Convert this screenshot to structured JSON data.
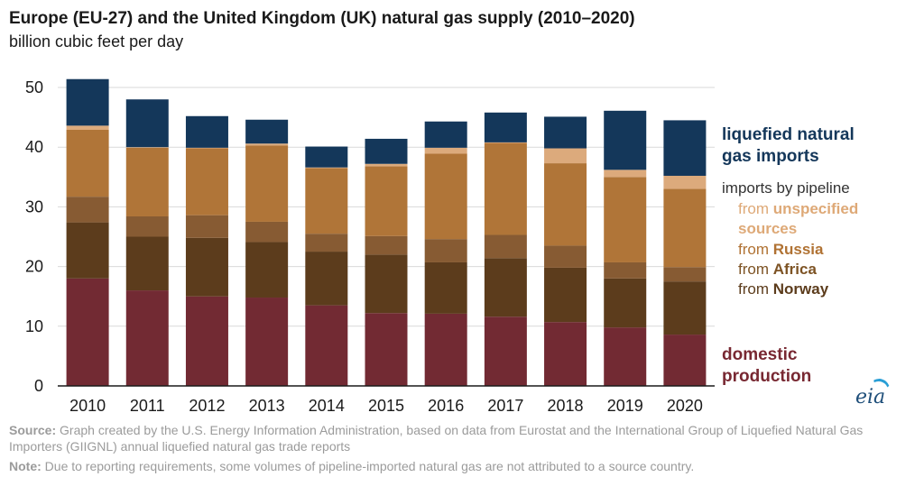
{
  "chart_data": {
    "type": "bar",
    "stacked": true,
    "title": "Europe (EU-27) and the United Kingdom (UK) natural gas supply (2010–2020)",
    "subtitle": "billion cubic feet per day",
    "categories": [
      "2010",
      "2011",
      "2012",
      "2013",
      "2014",
      "2015",
      "2016",
      "2017",
      "2018",
      "2019",
      "2020"
    ],
    "ylim": [
      0,
      50
    ],
    "yticks": [
      0,
      10,
      20,
      30,
      40,
      50
    ],
    "grid": true,
    "series": [
      {
        "key": "domestic",
        "color": "#722a33",
        "values": [
          18.0,
          16.0,
          15.0,
          14.8,
          13.5,
          12.2,
          12.1,
          11.6,
          10.7,
          9.8,
          8.6
        ]
      },
      {
        "key": "norway",
        "color": "#5c3c1c",
        "values": [
          9.4,
          9.0,
          9.8,
          9.3,
          9.0,
          9.8,
          8.6,
          9.8,
          9.1,
          8.2,
          8.9
        ]
      },
      {
        "key": "africa",
        "color": "#875b33",
        "values": [
          4.3,
          3.4,
          3.8,
          3.4,
          3.0,
          3.1,
          3.9,
          3.9,
          3.7,
          2.7,
          2.4
        ]
      },
      {
        "key": "russia",
        "color": "#b07538",
        "values": [
          11.2,
          11.5,
          11.2,
          12.8,
          11.0,
          11.7,
          14.3,
          15.4,
          13.8,
          14.3,
          13.1
        ]
      },
      {
        "key": "unspecified",
        "color": "#dcaa7c",
        "values": [
          0.7,
          0.1,
          0.1,
          0.3,
          0.1,
          0.4,
          1.0,
          0.1,
          2.5,
          1.2,
          2.2
        ]
      },
      {
        "key": "lng",
        "color": "#14375a",
        "values": [
          7.8,
          8.0,
          5.3,
          4.0,
          3.5,
          4.2,
          4.4,
          5.0,
          5.3,
          9.9,
          9.3
        ]
      }
    ]
  },
  "legend": {
    "lng_line1": "liquefied natural",
    "lng_line2": "gas imports",
    "pipeline": "imports by pipeline",
    "from": "from",
    "unspecified_line1": "unspecified",
    "unspecified_line2": "sources",
    "russia": "Russia",
    "africa": "Africa",
    "norway": "Norway",
    "domestic_line1": "domestic",
    "domestic_line2": "production"
  },
  "logo": "eia",
  "footer": {
    "source_label": "Source:",
    "source_text": "Graph created by the U.S. Energy Information Administration, based on data from Eurostat and the International Group of Liquefied Natural Gas Importers (GIIGNL) annual liquefied natural gas trade reports",
    "note_label": "Note:",
    "note_text": "Due to reporting requirements, some volumes of pipeline-imported natural gas are not attributed to a source country."
  }
}
